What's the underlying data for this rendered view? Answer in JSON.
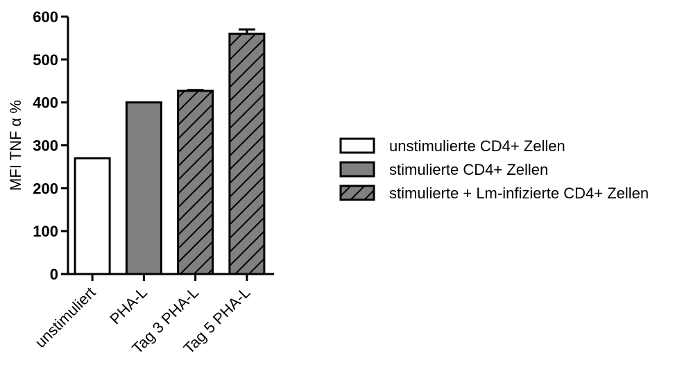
{
  "chart_data": {
    "type": "bar",
    "title": "",
    "xlabel": "",
    "ylabel": "MFI TNF α %",
    "ylim": [
      0,
      600
    ],
    "yticks": [
      0,
      100,
      200,
      300,
      400,
      500,
      600
    ],
    "categories": [
      "unstimuliert",
      "PHA-L",
      "Tag 3 PHA-L",
      "Tag 5 PHA-L"
    ],
    "values": [
      270,
      400,
      427,
      560
    ],
    "errors": [
      0,
      0,
      2,
      10
    ],
    "bar_groups": [
      0,
      1,
      2,
      2
    ],
    "legend": {
      "placement": "right",
      "entries": [
        {
          "label": "unstimulierte CD4+ Zellen",
          "fill": "#ffffff",
          "pattern": "none"
        },
        {
          "label": "stimulierte CD4+ Zellen",
          "fill": "#808080",
          "pattern": "none"
        },
        {
          "label": "stimulierte + Lm-infizierte CD4+ Zellen",
          "fill": "#808080",
          "pattern": "hatch"
        }
      ]
    },
    "grid": false
  }
}
